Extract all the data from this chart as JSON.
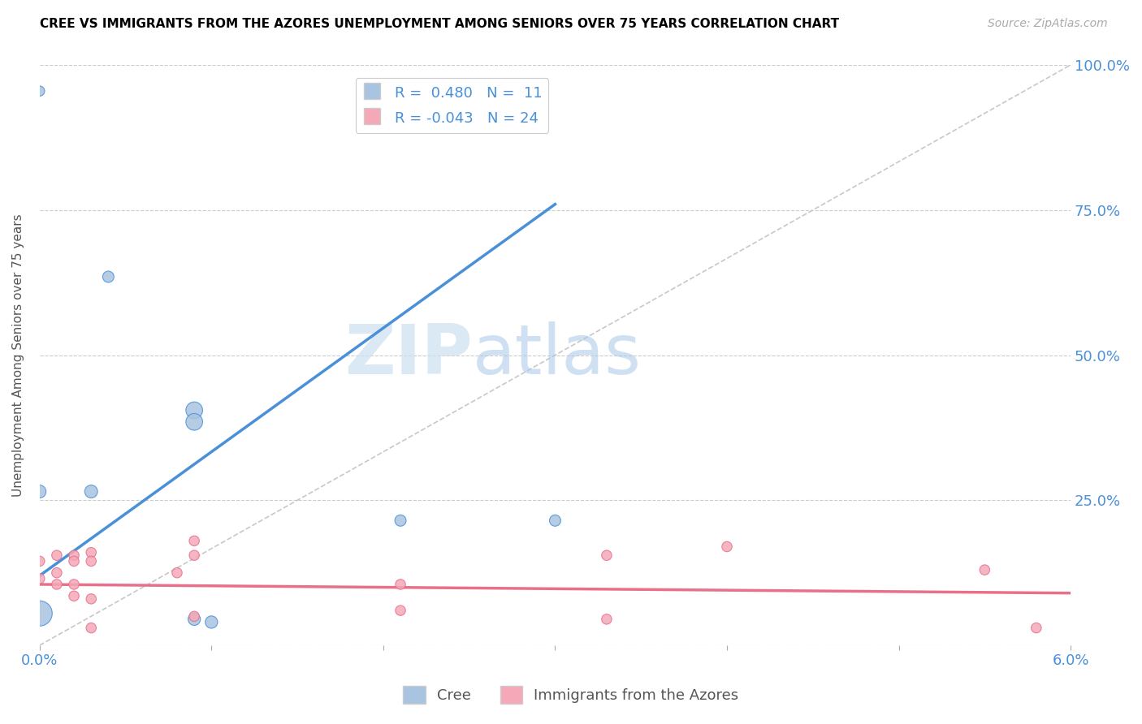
{
  "title": "CREE VS IMMIGRANTS FROM THE AZORES UNEMPLOYMENT AMONG SENIORS OVER 75 YEARS CORRELATION CHART",
  "source": "Source: ZipAtlas.com",
  "xlabel": "",
  "ylabel": "Unemployment Among Seniors over 75 years",
  "xlim": [
    0.0,
    0.06
  ],
  "ylim": [
    0.0,
    1.0
  ],
  "xticks": [
    0.0,
    0.01,
    0.02,
    0.03,
    0.04,
    0.05,
    0.06
  ],
  "xtick_labels": [
    "0.0%",
    "",
    "",
    "",
    "",
    "",
    "6.0%"
  ],
  "ytick_labels": [
    "",
    "25.0%",
    "50.0%",
    "75.0%",
    "100.0%"
  ],
  "yticks": [
    0.0,
    0.25,
    0.5,
    0.75,
    1.0
  ],
  "cree_color": "#a8c4e0",
  "azores_color": "#f4a8b8",
  "cree_line_color": "#4a90d9",
  "azores_line_color": "#e8708a",
  "diagonal_color": "#c8c8c8",
  "watermark_zip": "ZIP",
  "watermark_atlas": "atlas",
  "cree_points": [
    [
      0.0,
      0.955
    ],
    [
      0.004,
      0.635
    ],
    [
      0.009,
      0.405
    ],
    [
      0.009,
      0.385
    ],
    [
      0.003,
      0.265
    ],
    [
      0.0,
      0.265
    ],
    [
      0.021,
      0.215
    ],
    [
      0.03,
      0.215
    ],
    [
      0.0,
      0.055
    ],
    [
      0.009,
      0.045
    ],
    [
      0.01,
      0.04
    ]
  ],
  "cree_sizes": [
    80,
    100,
    220,
    220,
    130,
    130,
    100,
    100,
    500,
    120,
    120
  ],
  "azores_points": [
    [
      0.0,
      0.145
    ],
    [
      0.0,
      0.115
    ],
    [
      0.001,
      0.155
    ],
    [
      0.001,
      0.125
    ],
    [
      0.001,
      0.105
    ],
    [
      0.002,
      0.155
    ],
    [
      0.002,
      0.145
    ],
    [
      0.002,
      0.105
    ],
    [
      0.002,
      0.085
    ],
    [
      0.003,
      0.16
    ],
    [
      0.003,
      0.145
    ],
    [
      0.003,
      0.08
    ],
    [
      0.003,
      0.03
    ],
    [
      0.008,
      0.125
    ],
    [
      0.009,
      0.18
    ],
    [
      0.009,
      0.155
    ],
    [
      0.009,
      0.05
    ],
    [
      0.021,
      0.105
    ],
    [
      0.021,
      0.06
    ],
    [
      0.033,
      0.155
    ],
    [
      0.033,
      0.045
    ],
    [
      0.04,
      0.17
    ],
    [
      0.055,
      0.13
    ],
    [
      0.058,
      0.03
    ]
  ],
  "azores_sizes": [
    80,
    80,
    80,
    80,
    80,
    80,
    80,
    80,
    80,
    80,
    80,
    80,
    80,
    80,
    80,
    80,
    80,
    80,
    80,
    80,
    80,
    80,
    80,
    80
  ],
  "cree_line_x": [
    0.0,
    0.03
  ],
  "cree_line_y": [
    0.12,
    0.76
  ],
  "azores_line_x": [
    0.0,
    0.06
  ],
  "azores_line_y": [
    0.105,
    0.09
  ]
}
